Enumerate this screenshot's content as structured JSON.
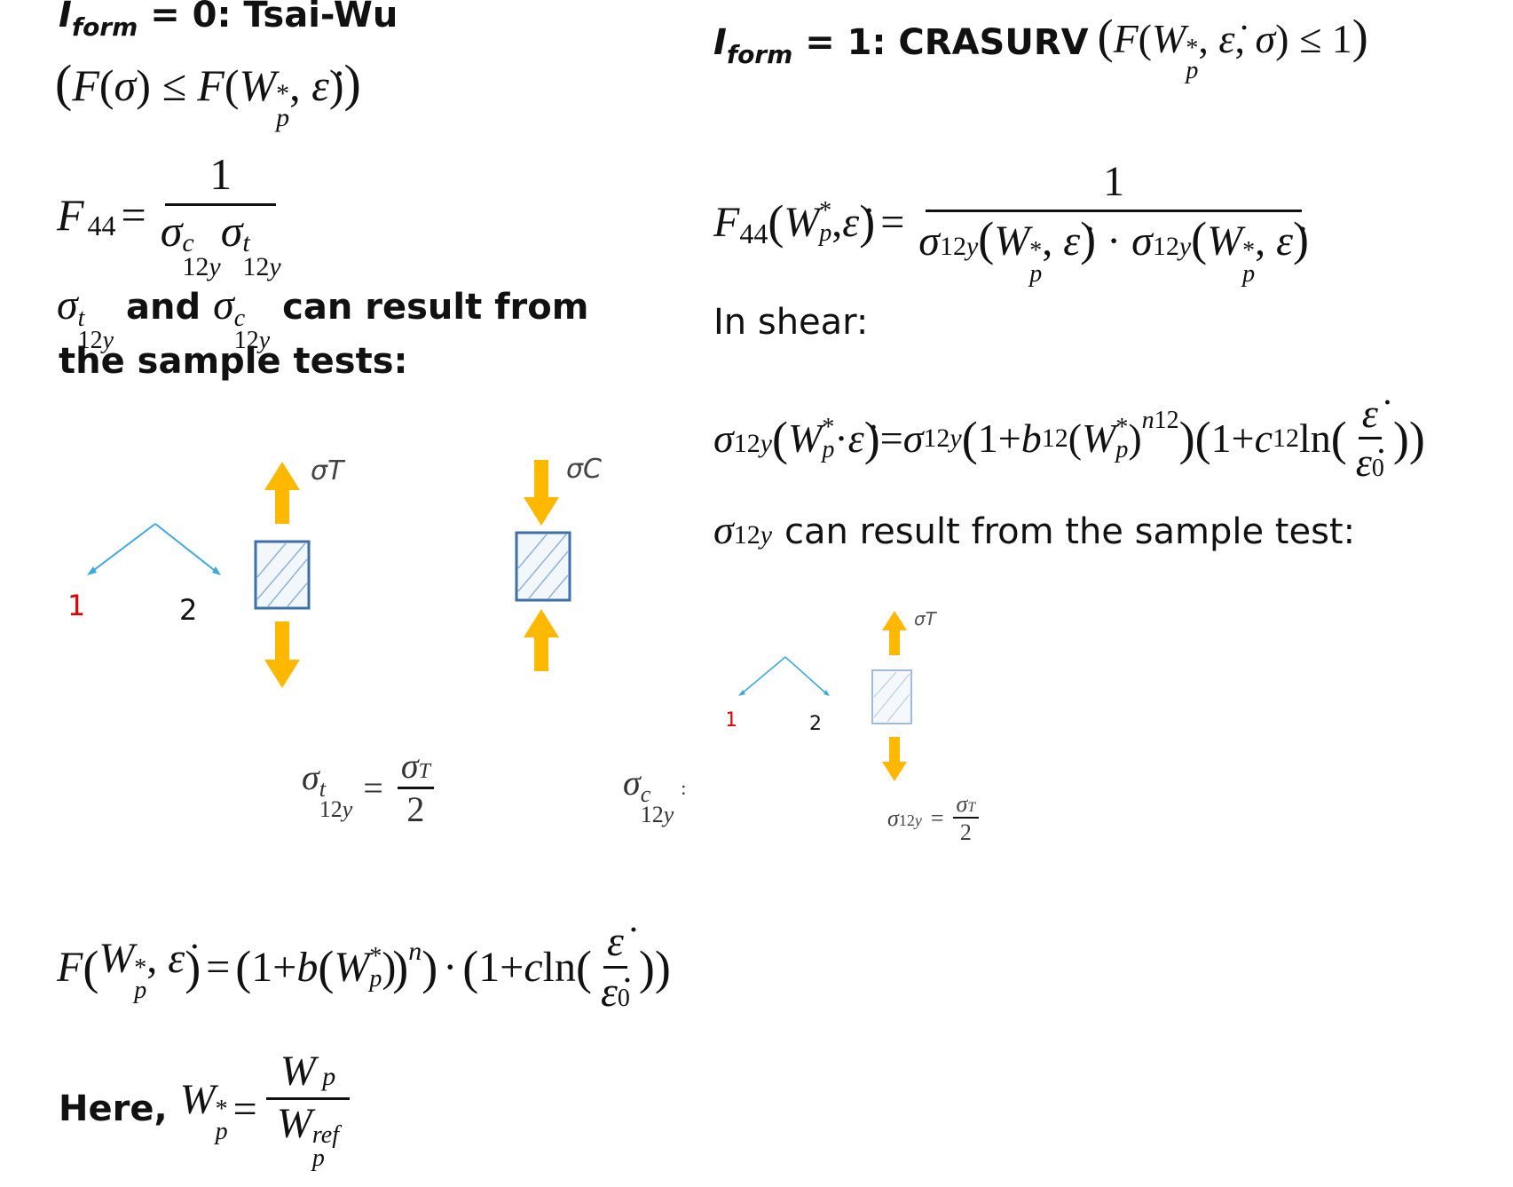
{
  "left": {
    "header_var": "I",
    "header_sub": "form",
    "header_rest": " = 0: Tsai-Wu",
    "condition": "(F(σ) ≤ F(W*p, ε̇))",
    "f44_lhs": "F",
    "f44_lhs_sub": "44",
    "f44_num": "1",
    "f44_den": "σc12yσt12y",
    "text_and": "and",
    "text_can": "can result from",
    "text_line2": "the sample tests:",
    "eq_tension": "σt12y = σT/2",
    "eq_compression": "σc12y",
    "f_eq": "F(W*p, ε̇) = (1 + b(W*p)n) · (1 + c ln(ε̇/ε̇0))",
    "here_label": "Here,",
    "here_eq": "W*p = Wp / Wpref"
  },
  "right": {
    "header_var": "I",
    "header_sub": "form",
    "header_rest": " = 1: CRASURV",
    "header_cond": "(F(W*p, ε̇, σ) ≤ 1)",
    "f44_eq": "F44(W*p, ε̇) = 1 / (σ12y(W*p, ε̇) · σ12y(W*p, ε̇))",
    "in_shear": "In shear:",
    "sigma_eq": "σ12y(W*p · ε̇) = σ12y(1 + b12(W*p)n12)(1 + c12 ln(ε̇/ε̇0))",
    "sample_text": "can result from the sample test:",
    "eq_shear": "σ12y = σT/2"
  },
  "diagram": {
    "axis_1": "1",
    "axis_2": "2",
    "sigma_T": "σT",
    "sigma_C": "σC"
  },
  "colors": {
    "arrow_fill": "#FFB800",
    "axis_line": "#3EA8DF",
    "specimen_stroke": "#3E6FA8",
    "red_label": "#E00000"
  }
}
